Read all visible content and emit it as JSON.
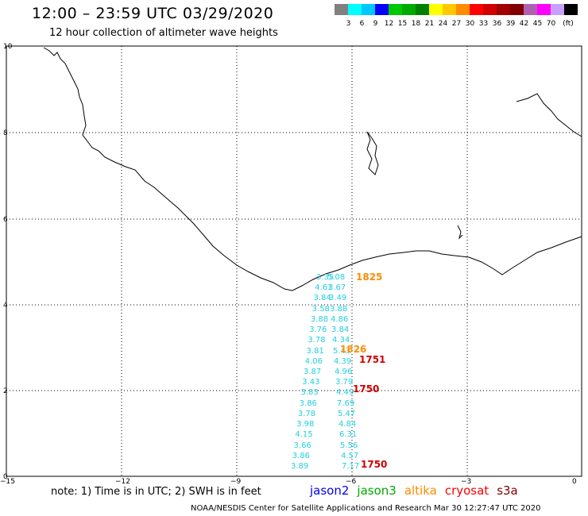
{
  "title": "12:00 – 23:59 UTC 03/29/2020",
  "subtitle": "12 hour collection of altimeter wave heights",
  "colorbar": {
    "unit": "(ft)",
    "colors": [
      "#808080",
      "#00ffff",
      "#00c8ff",
      "#0000ff",
      "#00c800",
      "#00aa00",
      "#008000",
      "#ffff00",
      "#ffc800",
      "#ff8c00",
      "#ff0000",
      "#d00000",
      "#a00000",
      "#800000",
      "#b060b0",
      "#ff00ff",
      "#c8a0ff",
      "#000000"
    ],
    "labels": [
      "3",
      "6",
      "9",
      "12",
      "15",
      "18",
      "21",
      "24",
      "27",
      "30",
      "33",
      "36",
      "39",
      "42",
      "45",
      "70"
    ]
  },
  "axes": {
    "x_ticks": [
      "−15",
      "−12",
      "−9",
      "−6",
      "−3",
      "0"
    ],
    "y_ticks": [
      "0",
      "2",
      "4",
      "6",
      "8",
      "10"
    ]
  },
  "observations": {
    "track_a": [
      "3.89",
      "3.86",
      "3.66",
      "4.15",
      "3.98",
      "3.78",
      "3.86",
      "3.83",
      "3.43",
      "3.87",
      "4.06",
      "3.81",
      "3.78",
      "3.76",
      "3.88",
      "3.58",
      "3.84",
      "4.61",
      "3.35"
    ],
    "track_b": [
      "7.17",
      "4.57",
      "5.56",
      "6.31",
      "4.84",
      "5.47",
      "7.69",
      "4.49",
      "3.79",
      "4.96",
      "4.39",
      "5.43",
      "4.34",
      "3.84",
      "4.86",
      "3.88",
      "3.49",
      "3.67",
      "5.08"
    ]
  },
  "passes": [
    {
      "label": "1825",
      "color": "#ff8c00"
    },
    {
      "label": "1826",
      "color": "#ff8c00"
    },
    {
      "label": "1751",
      "color": "#d00000"
    },
    {
      "label": "1750",
      "color": "#d00000"
    },
    {
      "label": "1750",
      "color": "#d00000"
    }
  ],
  "note": "note:  1) Time is in UTC;  2) SWH is in feet",
  "satellites": [
    {
      "name": "jason2",
      "color": "#0000ff"
    },
    {
      "name": "jason3",
      "color": "#00aa00"
    },
    {
      "name": "altika",
      "color": "#ff8c00"
    },
    {
      "name": "cryosat",
      "color": "#ff0000"
    },
    {
      "name": "s3a",
      "color": "#800000"
    }
  ],
  "credit": "NOAA/NESDIS Center for Satellite Applications and Research    Mar 30 12:27:47 UTC 2020"
}
